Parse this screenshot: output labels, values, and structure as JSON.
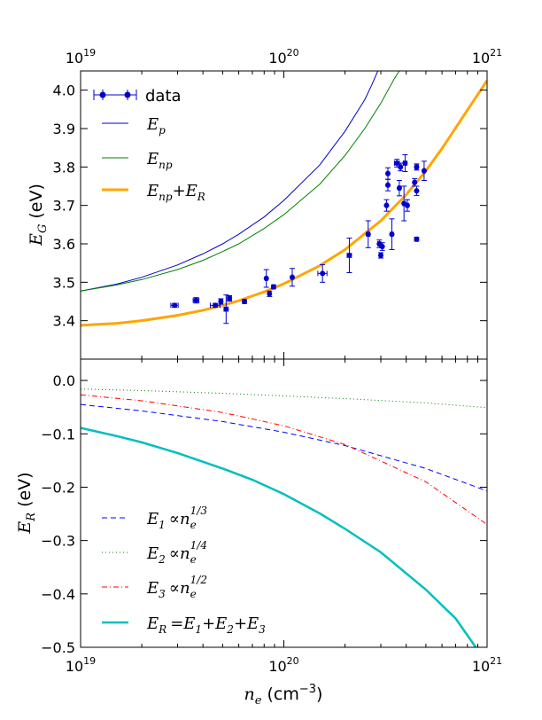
{
  "chart_data": [
    {
      "type": "scatter",
      "panel": "top",
      "xscale": "log",
      "xlim": [
        1e+19,
        1e+21
      ],
      "ylim": [
        3.3,
        4.05
      ],
      "ylabel": "E_G (eV)",
      "ylabel_math": "E",
      "ylabel_sub": "G",
      "ylabel_unit": "(eV)",
      "top_axis": true,
      "x_tick_labels": [
        {
          "v": 1e+19,
          "base": "10",
          "exp": "19"
        },
        {
          "v": 1e+20,
          "base": "10",
          "exp": "20"
        },
        {
          "v": 1e+21,
          "base": "10",
          "exp": "21"
        }
      ],
      "y_ticks": [
        3.4,
        3.5,
        3.6,
        3.7,
        3.8,
        3.9,
        4.0
      ],
      "y_tick_labels": [
        "3.4",
        "3.5",
        "3.6",
        "3.7",
        "3.8",
        "3.9",
        "4.0"
      ],
      "legend_position": "top-left",
      "data_series": {
        "name": "data",
        "color": "#0000cc",
        "points": [
          {
            "x": 2.9e+19,
            "y": 3.44,
            "yerr": 0.005,
            "xerr": 1.2e+18
          },
          {
            "x": 3.7e+19,
            "y": 3.453,
            "yerr": 0.007,
            "xerr": 1.2e+18
          },
          {
            "x": 4.6e+19,
            "y": 3.44,
            "yerr": 0.005,
            "xerr": 2.5e+18
          },
          {
            "x": 4.9e+19,
            "y": 3.45,
            "yerr": 0.007,
            "xerr": 1e+18
          },
          {
            "x": 5.2e+19,
            "y": 3.43,
            "yerr": 0.037,
            "xerr": 1.2e+18
          },
          {
            "x": 5.4e+19,
            "y": 3.458,
            "yerr": 0.007,
            "xerr": 1.2e+18
          },
          {
            "x": 6.4e+19,
            "y": 3.45,
            "yerr": 0.005,
            "xerr": 1e+18
          },
          {
            "x": 8.2e+19,
            "y": 3.51,
            "yerr": 0.023,
            "xerr": 1e+18
          },
          {
            "x": 8.5e+19,
            "y": 3.47,
            "yerr": 0.007,
            "xerr": 1e+18
          },
          {
            "x": 8.9e+19,
            "y": 3.488,
            "yerr": 0.005,
            "xerr": 1.2e+18
          },
          {
            "x": 1.1e+20,
            "y": 3.513,
            "yerr": 0.023,
            "xerr": 1e+18
          },
          {
            "x": 1.55e+20,
            "y": 3.523,
            "yerr": 0.023,
            "xerr": 8e+18
          },
          {
            "x": 2.1e+20,
            "y": 3.57,
            "yerr": 0.045,
            "xerr": 5e+18
          },
          {
            "x": 2.6e+20,
            "y": 3.625,
            "yerr": 0.035,
            "xerr": 5e+18
          },
          {
            "x": 2.95e+20,
            "y": 3.6,
            "yerr": 0.01,
            "xerr": 5e+18
          },
          {
            "x": 3e+20,
            "y": 3.57,
            "yerr": 0.007,
            "xerr": 3e+18
          },
          {
            "x": 3.05e+20,
            "y": 3.593,
            "yerr": 0.01,
            "xerr": 3e+18
          },
          {
            "x": 3.2e+20,
            "y": 3.7,
            "yerr": 0.015,
            "xerr": 3e+18
          },
          {
            "x": 3.25e+20,
            "y": 3.753,
            "yerr": 0.015,
            "xerr": 3e+18
          },
          {
            "x": 3.25e+20,
            "y": 3.783,
            "yerr": 0.015,
            "xerr": 3e+18
          },
          {
            "x": 3.4e+20,
            "y": 3.625,
            "yerr": 0.04,
            "xerr": 5e+18
          },
          {
            "x": 3.6e+20,
            "y": 3.81,
            "yerr": 0.01,
            "xerr": 1e+19
          },
          {
            "x": 3.7e+20,
            "y": 3.745,
            "yerr": 0.02,
            "xerr": 5e+18
          },
          {
            "x": 3.75e+20,
            "y": 3.8,
            "yerr": 0.01,
            "xerr": 5e+18
          },
          {
            "x": 3.9e+20,
            "y": 3.705,
            "yerr": 0.045,
            "xerr": 5e+18
          },
          {
            "x": 3.95e+20,
            "y": 3.81,
            "yerr": 0.022,
            "xerr": 8e+18
          },
          {
            "x": 4.05e+20,
            "y": 3.7,
            "yerr": 0.015,
            "xerr": 5e+18
          },
          {
            "x": 4.4e+20,
            "y": 3.76,
            "yerr": 0.01,
            "xerr": 5e+18
          },
          {
            "x": 4.5e+20,
            "y": 3.8,
            "yerr": 0.008,
            "xerr": 8e+18
          },
          {
            "x": 4.5e+20,
            "y": 3.738,
            "yerr": 0.012,
            "xerr": 3e+18
          },
          {
            "x": 4.5e+20,
            "y": 3.612,
            "yerr": 0.005,
            "xerr": 5e+18
          },
          {
            "x": 4.9e+20,
            "y": 3.79,
            "yerr": 0.025,
            "xerr": 5e+18
          }
        ]
      },
      "curves": [
        {
          "key": "Ep",
          "color": "#0000cc",
          "width": 1,
          "dash": "",
          "legend_main": "E",
          "legend_sub": "p",
          "points": [
            [
              1e+19,
              3.477
            ],
            [
              1.5e+19,
              3.495
            ],
            [
              2e+19,
              3.513
            ],
            [
              3e+19,
              3.545
            ],
            [
              4e+19,
              3.574
            ],
            [
              5e+19,
              3.6
            ],
            [
              6e+19,
              3.625
            ],
            [
              8e+19,
              3.67
            ],
            [
              1e+20,
              3.713
            ],
            [
              1.5e+20,
              3.805
            ],
            [
              2e+20,
              3.893
            ],
            [
              2.5e+20,
              3.975
            ],
            [
              2.7e+20,
              4.012
            ],
            [
              2.9e+20,
              4.05
            ]
          ]
        },
        {
          "key": "Enp",
          "color": "#008000",
          "width": 1,
          "dash": "",
          "legend_main": "E",
          "legend_sub": "np",
          "points": [
            [
              1e+19,
              3.477
            ],
            [
              1.5e+19,
              3.493
            ],
            [
              2e+19,
              3.507
            ],
            [
              3e+19,
              3.533
            ],
            [
              4e+19,
              3.557
            ],
            [
              5e+19,
              3.58
            ],
            [
              6e+19,
              3.6
            ],
            [
              8e+19,
              3.64
            ],
            [
              1e+20,
              3.676
            ],
            [
              1.5e+20,
              3.755
            ],
            [
              2e+20,
              3.83
            ],
            [
              2.5e+20,
              3.9
            ],
            [
              3e+20,
              3.966
            ],
            [
              3.5e+20,
              4.03
            ],
            [
              3.7e+20,
              4.05
            ]
          ]
        },
        {
          "key": "EnpER",
          "color": "#ffa500",
          "width": 3,
          "dash": "",
          "legend_main": "E",
          "legend_sub": "np",
          "legend_plus": "+E",
          "legend_sub2": "R",
          "points": [
            [
              1e+19,
              3.388
            ],
            [
              1.5e+19,
              3.393
            ],
            [
              2e+19,
              3.4
            ],
            [
              3e+19,
              3.414
            ],
            [
              4e+19,
              3.427
            ],
            [
              5e+19,
              3.44
            ],
            [
              6e+19,
              3.452
            ],
            [
              8e+19,
              3.475
            ],
            [
              1e+20,
              3.496
            ],
            [
              1.5e+20,
              3.543
            ],
            [
              2e+20,
              3.585
            ],
            [
              3e+20,
              3.66
            ],
            [
              4e+20,
              3.728
            ],
            [
              5e+20,
              3.79
            ],
            [
              6e+20,
              3.848
            ],
            [
              8e+20,
              3.948
            ],
            [
              1e+21,
              4.025
            ]
          ]
        }
      ]
    },
    {
      "type": "line",
      "panel": "bottom",
      "xscale": "log",
      "xlim": [
        1e+19,
        1e+21
      ],
      "ylim": [
        -0.5,
        0.04
      ],
      "xlabel": "n_e (cm^-3)",
      "xlabel_math": "n",
      "xlabel_sub": "e",
      "xlabel_unit_pre": "(cm",
      "xlabel_unit_exp": "−3",
      "xlabel_unit_post": ")",
      "ylabel": "E_R (eV)",
      "ylabel_math": "E",
      "ylabel_sub": "R",
      "ylabel_unit": "(eV)",
      "x_tick_labels": [
        {
          "v": 1e+19,
          "base": "10",
          "exp": "19"
        },
        {
          "v": 1e+20,
          "base": "10",
          "exp": "20"
        },
        {
          "v": 1e+21,
          "base": "10",
          "exp": "21"
        }
      ],
      "y_ticks": [
        -0.5,
        -0.4,
        -0.3,
        -0.2,
        -0.1,
        0.0
      ],
      "y_tick_labels": [
        "−0.5",
        "−0.4",
        "−0.3",
        "−0.2",
        "−0.1",
        "0.0"
      ],
      "legend_position": "bottom-left",
      "series": [
        {
          "key": "E1",
          "color": "#0000ff",
          "width": 1,
          "dash": "6,4",
          "legend_main": "E",
          "legend_sub": "1",
          "legend_prop": "∝n",
          "legend_exp": "1/3",
          "points": [
            [
              1e+19,
              -0.045
            ],
            [
              2e+19,
              -0.057
            ],
            [
              5e+19,
              -0.077
            ],
            [
              1e+20,
              -0.097
            ],
            [
              2e+20,
              -0.122
            ],
            [
              5e+20,
              -0.165
            ],
            [
              1e+21,
              -0.207
            ]
          ]
        },
        {
          "key": "E2",
          "color": "#008000",
          "width": 1,
          "dash": "1,3",
          "legend_main": "E",
          "legend_sub": "2",
          "legend_prop": "∝n",
          "legend_exp": "1/4",
          "points": [
            [
              1e+19,
              -0.016
            ],
            [
              2e+19,
              -0.019
            ],
            [
              5e+19,
              -0.024
            ],
            [
              1e+20,
              -0.029
            ],
            [
              2e+20,
              -0.034
            ],
            [
              5e+20,
              -0.042
            ],
            [
              1e+21,
              -0.051
            ]
          ]
        },
        {
          "key": "E3",
          "color": "#ff0000",
          "width": 1,
          "dash": "6,3,1,3",
          "legend_main": "E",
          "legend_sub": "3",
          "legend_prop": "∝n",
          "legend_exp": "1/2",
          "points": [
            [
              1e+19,
              -0.027
            ],
            [
              2e+19,
              -0.038
            ],
            [
              5e+19,
              -0.06
            ],
            [
              1e+20,
              -0.085
            ],
            [
              2e+20,
              -0.12
            ],
            [
              5e+20,
              -0.19
            ],
            [
              1e+21,
              -0.27
            ]
          ]
        },
        {
          "key": "ER",
          "color": "#00bfbf",
          "width": 2.5,
          "dash": "",
          "legend_main": "E",
          "legend_sub": "R",
          "legend_sum": "=E",
          "legend_s1": "1",
          "legend_p2": "+E",
          "legend_s2": "2",
          "legend_p3": "+E",
          "legend_s3": "3",
          "points": [
            [
              1e+19,
              -0.089
            ],
            [
              1.5e+19,
              -0.104
            ],
            [
              2e+19,
              -0.116
            ],
            [
              3e+19,
              -0.136
            ],
            [
              5e+19,
              -0.165
            ],
            [
              7e+19,
              -0.186
            ],
            [
              1e+20,
              -0.213
            ],
            [
              1.5e+20,
              -0.249
            ],
            [
              2e+20,
              -0.278
            ],
            [
              3e+20,
              -0.322
            ],
            [
              5e+20,
              -0.392
            ],
            [
              7e+20,
              -0.446
            ],
            [
              8.8e+20,
              -0.5
            ]
          ]
        }
      ]
    }
  ],
  "legend_top": {
    "data_label": "data"
  }
}
